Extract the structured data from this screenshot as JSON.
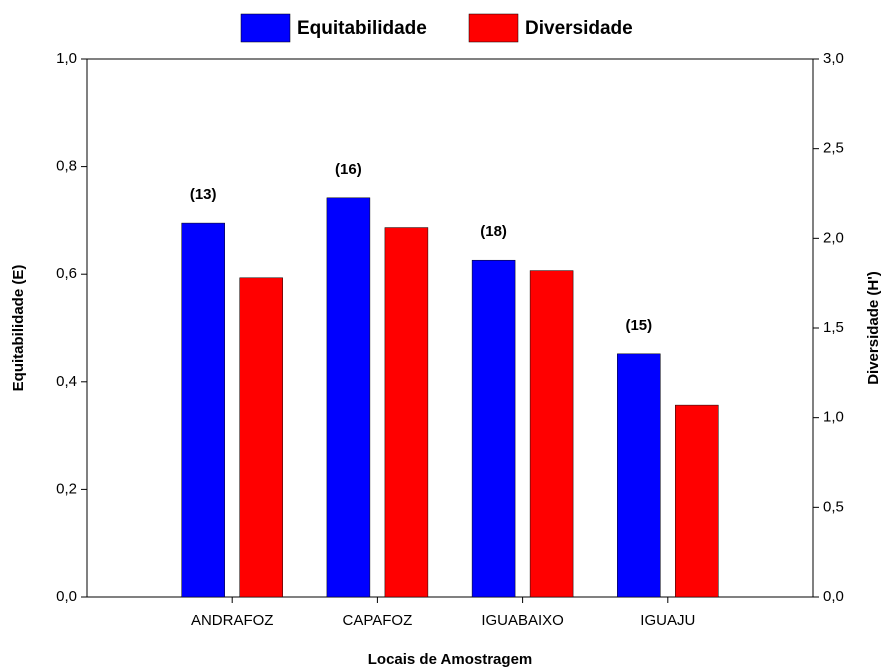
{
  "chart_data": {
    "type": "bar",
    "categories": [
      "ANDRAFOZ",
      "CAPAFOZ",
      "IGUABAIXO",
      "IGUAJU"
    ],
    "series": [
      {
        "name": "Equitabilidade",
        "color": "#0000ff",
        "values": [
          0.695,
          0.742,
          0.626,
          0.452
        ]
      },
      {
        "name": "Diversidade",
        "color": "#ff0000",
        "values": [
          1.78,
          2.06,
          1.82,
          1.07
        ],
        "axis": "y2"
      }
    ],
    "annotations": [
      "(13)",
      "(16)",
      "(18)",
      "(15)"
    ],
    "xlabel": "Locais de Amostragem",
    "ylabel": "Equitabilidade (E)",
    "y2label": "Diversidade (H')",
    "ylim": [
      0,
      1
    ],
    "yticks": [
      {
        "value": 0,
        "label": "0,0"
      },
      {
        "value": 0.2,
        "label": "0,2"
      },
      {
        "value": 0.4,
        "label": "0,4"
      },
      {
        "value": 0.6,
        "label": "0,6"
      },
      {
        "value": 0.8,
        "label": "0,8"
      },
      {
        "value": 1,
        "label": "1,0"
      }
    ],
    "y2lim": [
      0,
      3
    ],
    "y2ticks": [
      {
        "value": 0,
        "label": "0,0"
      },
      {
        "value": 0.5,
        "label": "0,5"
      },
      {
        "value": 1,
        "label": "1,0"
      },
      {
        "value": 1.5,
        "label": "1,5"
      },
      {
        "value": 2,
        "label": "2,0"
      },
      {
        "value": 2.5,
        "label": "2,5"
      },
      {
        "value": 3,
        "label": "3,0"
      }
    ],
    "legend": "top"
  }
}
